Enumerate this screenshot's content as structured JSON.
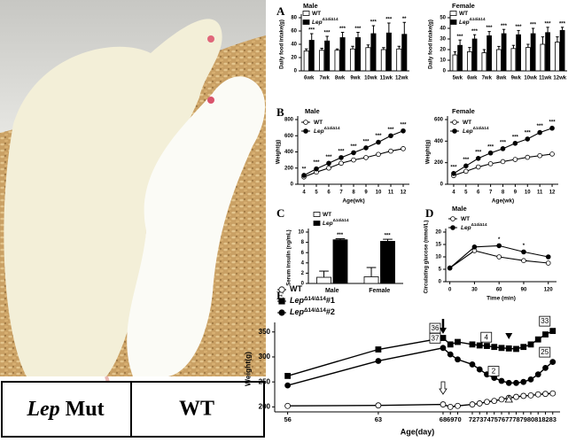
{
  "photo": {
    "left_label": {
      "italic": "Lep",
      "text": "Mut"
    },
    "right_label": "WT"
  },
  "chart_data": [
    {
      "type": "bar",
      "panel": "A",
      "title": "Male",
      "categories": [
        "6wk",
        "7wk",
        "8wk",
        "9wk",
        "10wk",
        "11wk",
        "12wk"
      ],
      "series": [
        {
          "name": "WT",
          "color": "#ffffff",
          "values": [
            30,
            31,
            31,
            33,
            35,
            32,
            33
          ],
          "errors": [
            3,
            3,
            2,
            4,
            4,
            3,
            4
          ]
        },
        {
          "name": "Lep",
          "name_sup": "Δ14/Δ14",
          "color": "#000000",
          "values": [
            46,
            45,
            50,
            50,
            56,
            57,
            55
          ],
          "errors": [
            10,
            7,
            8,
            8,
            12,
            15,
            18
          ]
        }
      ],
      "annotations": [
        "***",
        "***",
        "***",
        "***",
        "***",
        "***",
        "**"
      ],
      "ylabel": "Daily food intake(g)",
      "ylim": [
        0,
        80
      ],
      "yticks": [
        0,
        20,
        40,
        60,
        80
      ]
    },
    {
      "type": "bar",
      "title": "Female",
      "categories": [
        "5wk",
        "6wk",
        "7wk",
        "8wk",
        "9wk",
        "10wk",
        "11wk",
        "12wk"
      ],
      "series": [
        {
          "name": "WT",
          "color": "#ffffff",
          "values": [
            15,
            18,
            17,
            20,
            21,
            22,
            25,
            27
          ],
          "errors": [
            3,
            4,
            3,
            3,
            3,
            3,
            7,
            5
          ]
        },
        {
          "name": "Lep",
          "name_sup": "Δ14/Δ14",
          "color": "#000000",
          "values": [
            24,
            30,
            33,
            35,
            34,
            35,
            36,
            38
          ],
          "errors": [
            5,
            4,
            4,
            4,
            4,
            5,
            5,
            3
          ]
        }
      ],
      "annotations": [
        "***",
        "***",
        "***",
        "***",
        "***",
        "***",
        "***",
        "***"
      ],
      "ylabel": "Daily food intake(g)",
      "ylim": [
        0,
        50
      ],
      "yticks": [
        0,
        10,
        20,
        30,
        40,
        50
      ]
    },
    {
      "type": "line",
      "panel": "B",
      "title": "Male",
      "x": [
        4,
        5,
        6,
        7,
        8,
        9,
        10,
        11,
        12
      ],
      "series": [
        {
          "name": "WT",
          "color": "#000000",
          "marker": "circle-open",
          "values": [
            90,
            150,
            200,
            260,
            300,
            330,
            370,
            410,
            440
          ]
        },
        {
          "name": "Lep",
          "name_sup": "Δ14/Δ14",
          "color": "#000000",
          "marker": "circle",
          "values": [
            110,
            190,
            260,
            330,
            390,
            450,
            520,
            600,
            660
          ]
        }
      ],
      "annotations": [
        "**",
        "***",
        "***",
        "***",
        "***",
        "***",
        "***",
        "***",
        "***"
      ],
      "xlabel": "Age(wk)",
      "ylabel": "Weight(g)",
      "xlim": [
        3.5,
        12.5
      ],
      "xticks": [
        4,
        5,
        6,
        7,
        8,
        9,
        10,
        11,
        12
      ],
      "ylim": [
        0,
        800
      ],
      "yticks": [
        0,
        200,
        400,
        600,
        800
      ]
    },
    {
      "type": "line",
      "title": "Female",
      "x": [
        4,
        5,
        6,
        7,
        8,
        9,
        10,
        11,
        12
      ],
      "series": [
        {
          "name": "WT",
          "color": "#000000",
          "marker": "circle-open",
          "values": [
            80,
            120,
            160,
            190,
            210,
            230,
            250,
            265,
            280
          ]
        },
        {
          "name": "Lep",
          "name_sup": "Δ14/Δ14",
          "color": "#000000",
          "marker": "circle",
          "values": [
            100,
            170,
            240,
            290,
            330,
            380,
            420,
            480,
            520
          ]
        }
      ],
      "annotations": [
        "***",
        "***",
        "***",
        "***",
        "***",
        "***",
        "***",
        "***",
        "***"
      ],
      "xlabel": "Age(wk)",
      "ylabel": "Weight(g)",
      "xlim": [
        3.5,
        12.5
      ],
      "xticks": [
        4,
        5,
        6,
        7,
        8,
        9,
        10,
        11,
        12
      ],
      "ylim": [
        0,
        600
      ],
      "yticks": [
        0,
        200,
        400,
        600
      ]
    },
    {
      "type": "bar",
      "panel": "C",
      "categories": [
        "Male",
        "Female"
      ],
      "series": [
        {
          "name": "WT",
          "color": "#ffffff",
          "values": [
            1.2,
            1.3
          ],
          "errors": [
            1.2,
            1.8
          ]
        },
        {
          "name": "Lep",
          "name_sup": "Δ14/Δ14",
          "color": "#000000",
          "values": [
            8.5,
            8.2
          ],
          "errors": [
            0.2,
            0.4
          ]
        }
      ],
      "annotations": [
        "***",
        "***"
      ],
      "ylabel": "Serum insulin (ng/mL)",
      "ylim": [
        0,
        10
      ],
      "yticks": [
        0,
        2,
        4,
        6,
        8,
        10
      ]
    },
    {
      "type": "line",
      "panel": "D",
      "title": "Male",
      "x": [
        0,
        30,
        60,
        90,
        120
      ],
      "series": [
        {
          "name": "WT",
          "color": "#000000",
          "marker": "circle-open",
          "values": [
            5.5,
            12.5,
            10,
            8.5,
            7.5
          ]
        },
        {
          "name": "Lep",
          "name_sup": "Δ14/Δ14",
          "color": "#000000",
          "marker": "circle",
          "values": [
            5.5,
            14,
            14.5,
            12,
            10
          ]
        }
      ],
      "annotations": [
        null,
        null,
        "*",
        "*",
        null
      ],
      "xlabel": "Time (min)",
      "ylabel": "Circulating glucose (mmol/L)",
      "xlim": [
        -5,
        130
      ],
      "xticks": [
        0,
        30,
        60,
        90,
        120
      ],
      "ylim": [
        0,
        20
      ],
      "yticks": [
        0,
        5,
        10,
        15,
        20
      ]
    },
    {
      "type": "line",
      "panel": "E",
      "x": [
        56,
        63,
        68,
        69,
        70,
        72,
        73,
        74,
        75,
        76,
        77,
        78,
        79,
        80,
        81,
        82,
        83
      ],
      "series": [
        {
          "name": "WT",
          "color": "#000000",
          "marker": "circle-open",
          "values": [
            202,
            203,
            205,
            200,
            202,
            205,
            207,
            210,
            212,
            215,
            218,
            220,
            222,
            223,
            225,
            226,
            227
          ]
        },
        {
          "name": "Lep",
          "name_sup": "Δ14/Δ14",
          "name_suffix": "#1",
          "color": "#000000",
          "marker": "square",
          "values": [
            262,
            315,
            338,
            325,
            330,
            325,
            323,
            322,
            320,
            318,
            317,
            316,
            320,
            325,
            335,
            345,
            352
          ],
          "notes": [
            {
              "x": 68,
              "label": "36"
            },
            {
              "x": 75,
              "label": "4"
            },
            {
              "x": 83,
              "label": "33"
            }
          ]
        },
        {
          "name": "Lep",
          "name_sup": "Δ14/Δ14",
          "name_suffix": "#2",
          "color": "#000000",
          "marker": "circle",
          "values": [
            243,
            292,
            318,
            305,
            295,
            285,
            275,
            265,
            258,
            252,
            248,
            248,
            250,
            255,
            265,
            278,
            290
          ],
          "notes": [
            {
              "x": 68,
              "label": "37"
            },
            {
              "x": 76,
              "label": "2"
            },
            {
              "x": 83,
              "label": "25"
            }
          ]
        }
      ],
      "xlabel": "Age(day)",
      "ylabel": "Weight(g)",
      "xlim": [
        55,
        84
      ],
      "xticks": [
        56,
        63,
        68,
        69,
        70,
        72,
        73,
        74,
        75,
        76,
        77,
        78,
        79,
        80,
        81,
        82,
        83
      ],
      "ylim": [
        190,
        362
      ],
      "yticks": [
        200,
        250,
        300,
        350
      ]
    }
  ]
}
